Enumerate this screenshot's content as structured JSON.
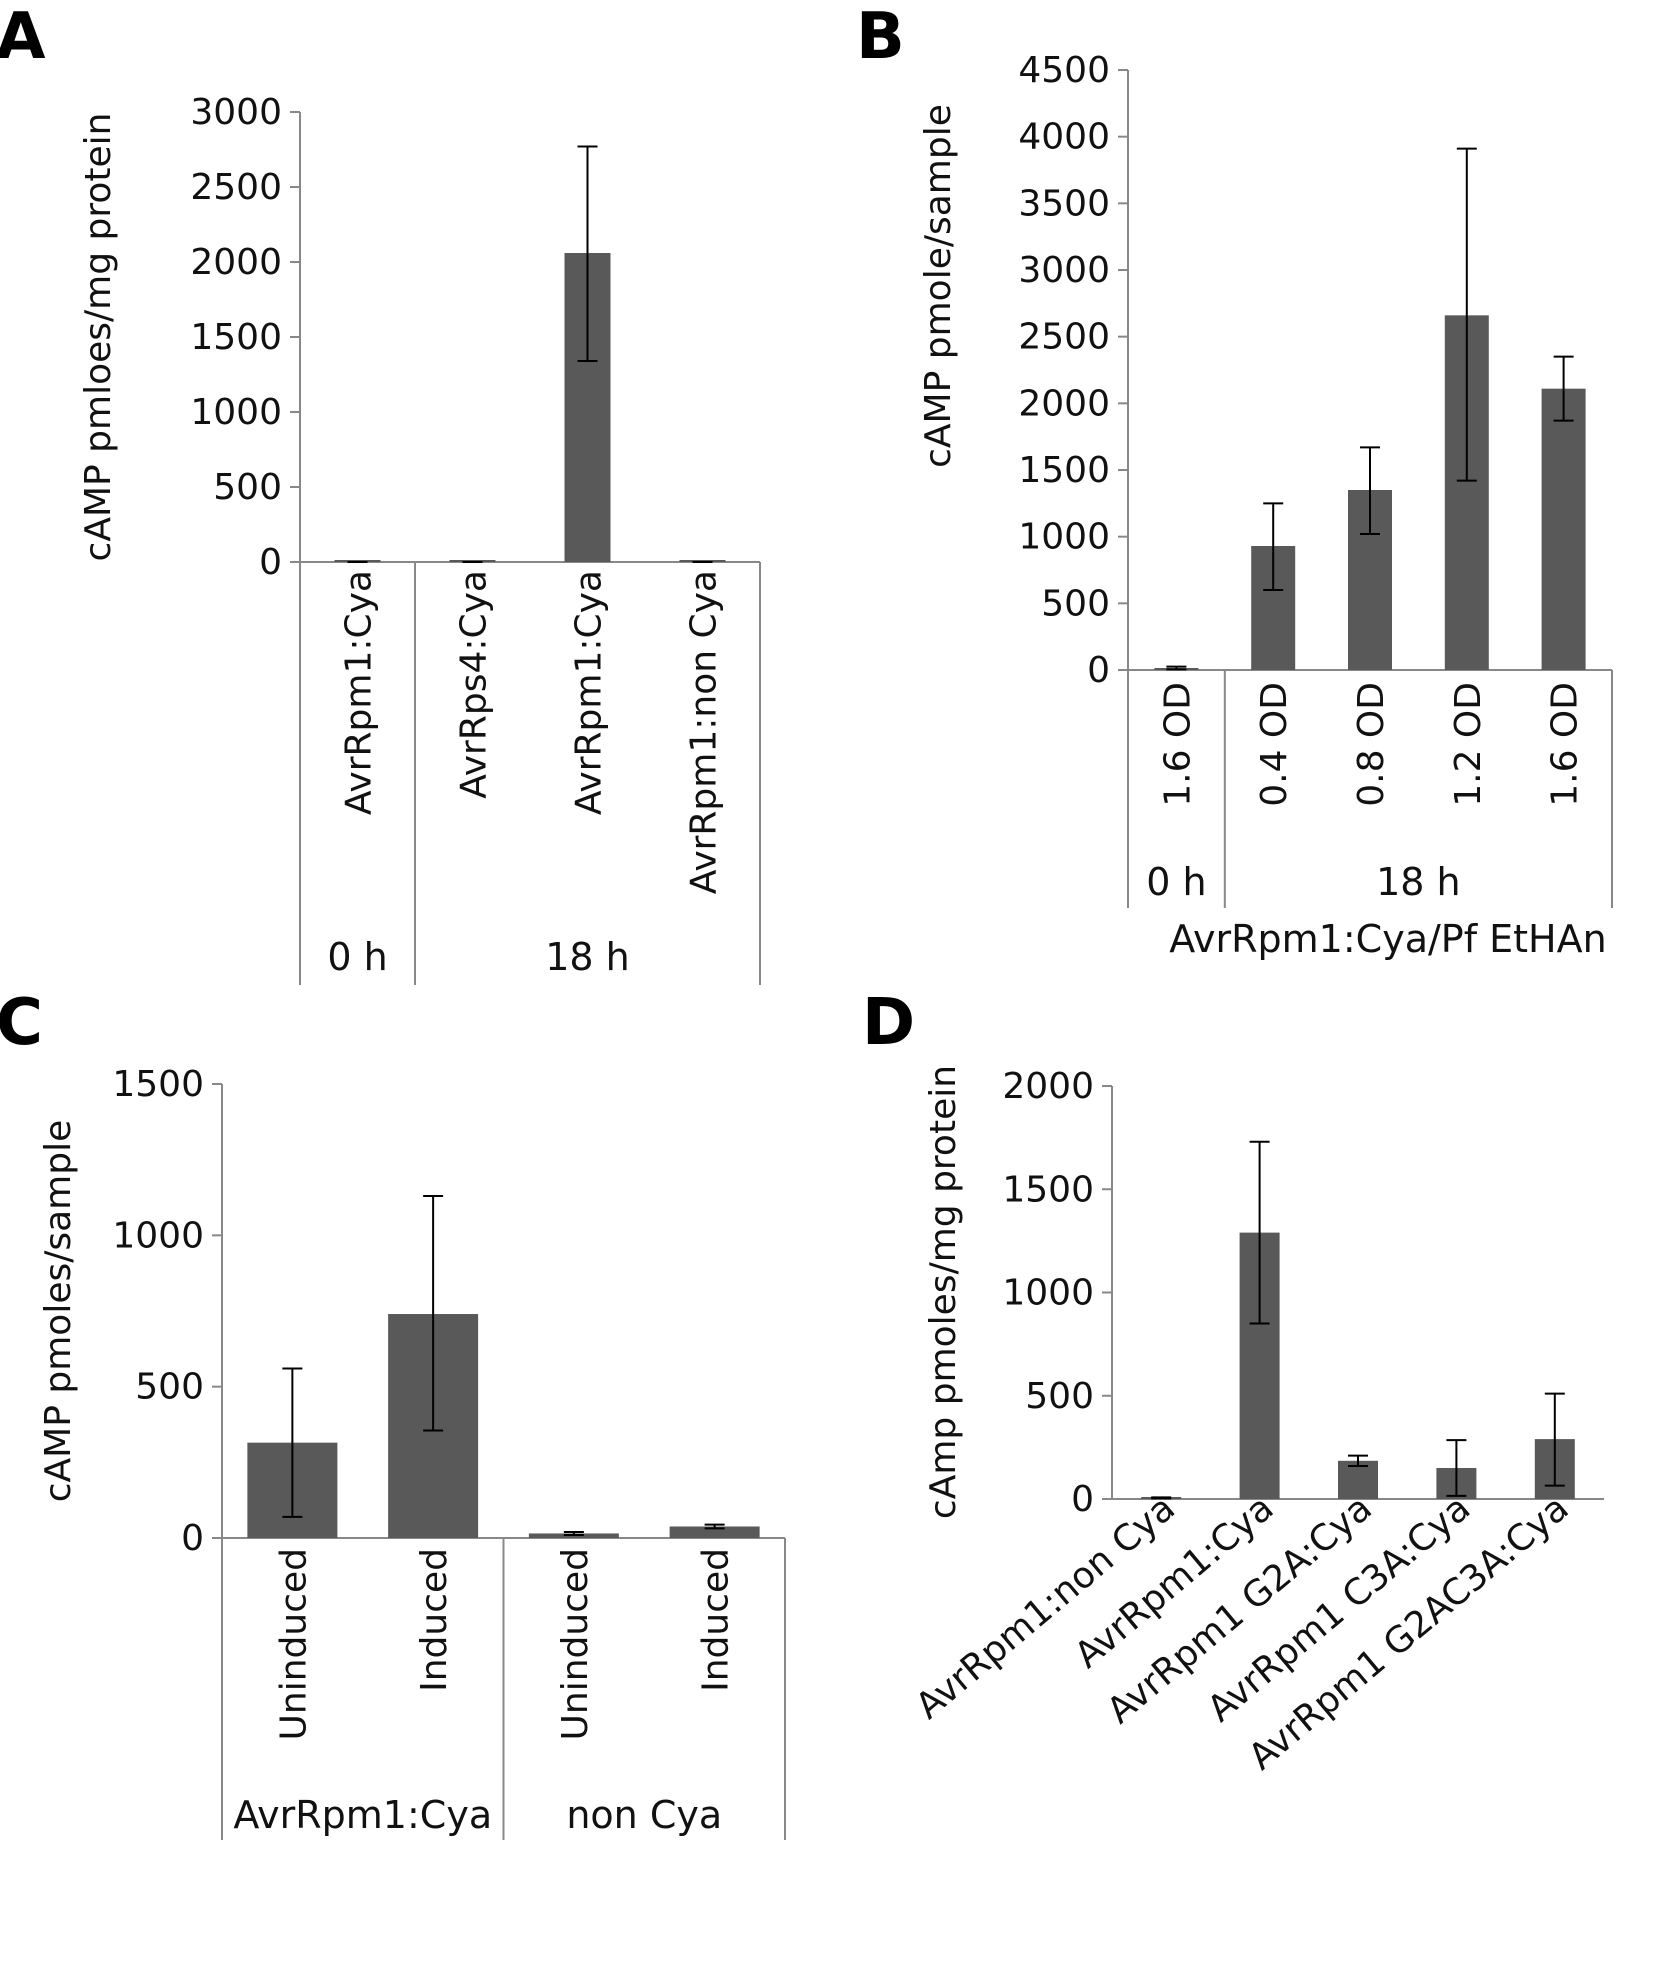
{
  "chart_data": [
    {
      "panel": "A",
      "type": "bar",
      "ylabel": "cAMP pmloes/mg protein",
      "ylim": [
        0,
        3000
      ],
      "yticks": [
        0,
        500,
        1000,
        1500,
        2000,
        2500,
        3000
      ],
      "categories": [
        "AvrRpm1:Cya",
        "AvrRps4:Cya",
        "AvrRpm1:Cya",
        "AvrRpm1:non Cya"
      ],
      "values": [
        5,
        5,
        2060,
        5
      ],
      "error_low": [
        0,
        0,
        1340,
        0
      ],
      "error_high": [
        0,
        0,
        2770,
        0
      ],
      "color": "#595959",
      "groups": [
        {
          "label": "0 h",
          "span": [
            0,
            0
          ]
        },
        {
          "label": "18 h",
          "span": [
            1,
            3
          ]
        }
      ]
    },
    {
      "panel": "B",
      "type": "bar",
      "ylabel": "cAMP pmole/sample",
      "ylim": [
        0,
        4500
      ],
      "yticks": [
        0,
        500,
        1000,
        1500,
        2000,
        2500,
        3000,
        3500,
        4000,
        4500
      ],
      "categories": [
        "1.6 OD",
        "0.4 OD",
        "0.8 OD",
        "1.2 OD",
        "1.6 OD"
      ],
      "values": [
        15,
        930,
        1350,
        2660,
        2110
      ],
      "error_low": [
        5,
        600,
        1020,
        1420,
        1870
      ],
      "error_high": [
        25,
        1250,
        1670,
        3910,
        2350
      ],
      "color": "#595959",
      "groups": [
        {
          "label": "0 h",
          "span": [
            0,
            0
          ]
        },
        {
          "label": "18 h",
          "span": [
            1,
            4
          ]
        }
      ],
      "xlabel": "AvrRpm1:Cya/Pf EtHAn"
    },
    {
      "panel": "C",
      "type": "bar",
      "ylabel": "cAMP pmoles/sample",
      "ylim": [
        0,
        1500
      ],
      "yticks": [
        0,
        500,
        1000,
        1500
      ],
      "categories": [
        "Uninduced",
        "Induced",
        "Uninduced",
        "Induced"
      ],
      "values": [
        315,
        740,
        15,
        38
      ],
      "error_low": [
        70,
        355,
        10,
        32
      ],
      "error_high": [
        560,
        1130,
        20,
        44
      ],
      "color": "#595959",
      "groups": [
        {
          "label": "AvrRpm1:Cya",
          "span": [
            0,
            1
          ]
        },
        {
          "label": "non Cya",
          "span": [
            2,
            3
          ]
        }
      ]
    },
    {
      "panel": "D",
      "type": "bar",
      "ylabel": "cAmp pmoles/mg protein",
      "ylim": [
        0,
        2000
      ],
      "yticks": [
        0,
        500,
        1000,
        1500,
        2000
      ],
      "categories": [
        "AvrRpm1:non Cya",
        "AvrRpm1:Cya",
        "AvrRpm1 G2A:Cya",
        "AvrRpm1 C3A:Cya",
        "AvrRpm1 G2AC3A:Cya"
      ],
      "values": [
        5,
        1290,
        185,
        150,
        290
      ],
      "error_low": [
        3,
        850,
        160,
        15,
        65
      ],
      "error_high": [
        8,
        1730,
        210,
        285,
        510
      ],
      "color": "#595959"
    }
  ]
}
